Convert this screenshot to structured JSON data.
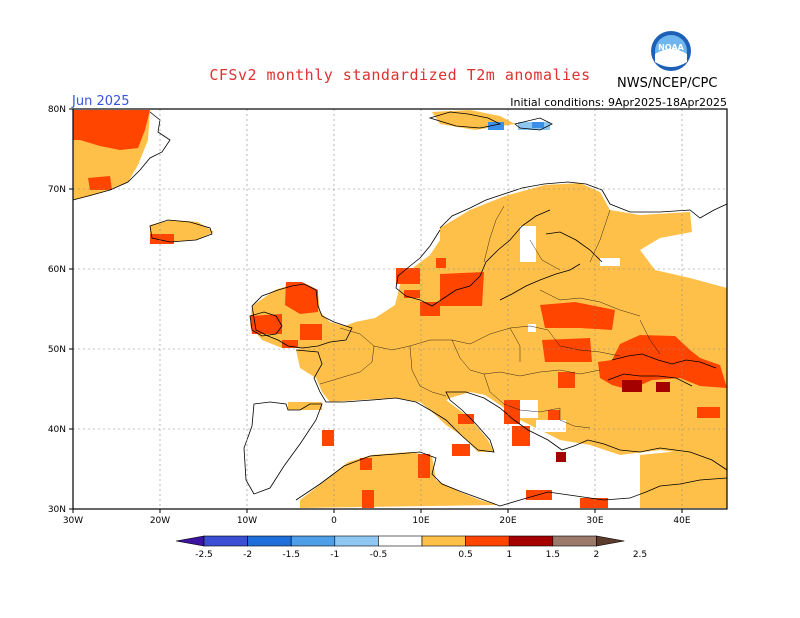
{
  "title": "CFSv2 monthly standardized T2m anomalies",
  "agency": "NWS/NCEP/CPC",
  "logo_text": "NOAA",
  "month": "Jun 2025",
  "initial_conditions": "Initial conditions: 9Apr2025-18Apr2025",
  "colors": {
    "title": "#e03030",
    "month": "#3355dd",
    "anom_0_5": "#ffc04a",
    "anom_1": "#ff4500",
    "anom_1_5": "#a50000",
    "neg_0_5": "#8ec8f2",
    "neg_1": "#3b8fe8"
  },
  "lat_labels": [
    "80N",
    "70N",
    "60N",
    "50N",
    "40N",
    "30N"
  ],
  "lon_labels": [
    "30W",
    "20W",
    "10W",
    "0",
    "10E",
    "20E",
    "30E",
    "40E"
  ],
  "colorbar_labels": [
    "-2.5",
    "-2",
    "-1.5",
    "-1",
    "-0.5",
    "0.5",
    "1",
    "1.5",
    "2",
    "2.5"
  ],
  "colorbar_colors": [
    "#3d14a0",
    "#3b4fd4",
    "#1e6fd9",
    "#4f9ee8",
    "#8ec8f2",
    "#ffffff",
    "#ffc04a",
    "#ff4500",
    "#a50000",
    "#9b7a6c",
    "#5c3a2c"
  ]
}
